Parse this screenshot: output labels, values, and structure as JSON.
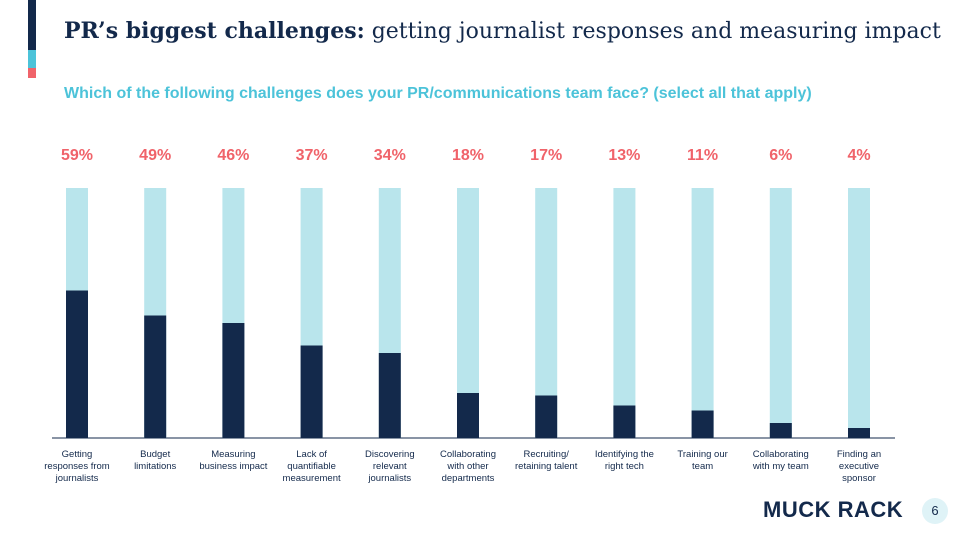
{
  "chart_data": {
    "type": "bar",
    "title_lead": "PR’s biggest challenges:",
    "title": "getting journalist responses and measuring impact",
    "subtitle": "Which of the following challenges does your PR/communications team face? (select all that apply)",
    "categories": [
      "Getting responses from journalists",
      "Budget limitations",
      "Measuring business impact",
      "Lack of quantifiable measurement",
      "Discovering relevant journalists",
      "Collaborating with other departments",
      "Recruiting/ retaining talent",
      "Identifying the right tech",
      "Training our team",
      "Collaborating with my team",
      "Finding an executive sponsor"
    ],
    "values": [
      59,
      49,
      46,
      37,
      34,
      18,
      17,
      13,
      11,
      6,
      4
    ],
    "value_labels": [
      "59%",
      "49%",
      "46%",
      "37%",
      "34%",
      "18%",
      "17%",
      "13%",
      "11%",
      "6%",
      "4%"
    ],
    "color": "#13294b",
    "track_color": "#b9e5ec",
    "label_color": "#f0636a",
    "ylim": [
      0,
      100
    ]
  },
  "footer": {
    "logo": "MUCK RACK",
    "page": "6"
  }
}
